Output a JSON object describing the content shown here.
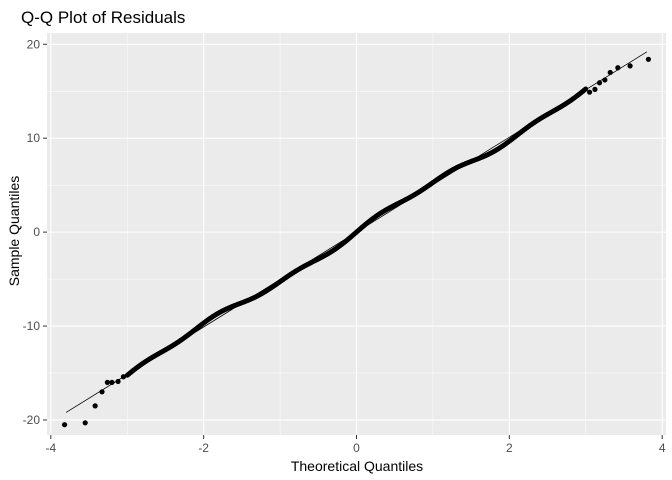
{
  "chart_data": {
    "type": "scatter",
    "title": "Q-Q Plot of Residuals",
    "xlabel": "Theoretical Quantiles",
    "ylabel": "Sample Quantiles",
    "xlim": [
      -4.05,
      4.05
    ],
    "ylim": [
      -21.6,
      21.2
    ],
    "x_ticks": [
      -4,
      -2,
      0,
      2,
      4
    ],
    "y_ticks": [
      -20,
      -10,
      0,
      10,
      20
    ],
    "x_tick_labels": [
      "-4",
      "-2",
      "0",
      "2",
      "4"
    ],
    "y_tick_labels": [
      "-20",
      "-10",
      "0",
      "10",
      "20"
    ],
    "x_minor": [
      -3,
      -1,
      1,
      3
    ],
    "y_minor": [
      -15,
      -5,
      5,
      15
    ],
    "grid": true,
    "panel_background": "#ebebeb",
    "grid_color": "#ffffff",
    "point_color": "#000000",
    "reference_line": {
      "x": [
        -3.8,
        3.8
      ],
      "y": [
        -19.2,
        19.2
      ],
      "color": "#000000"
    },
    "bulk_trend": {
      "x_from": -3.0,
      "x_to": 3.0,
      "intercept": 0.0,
      "slope": 5.05
    },
    "points": {
      "x": [
        -3.82,
        -3.55,
        -3.42,
        -3.33,
        -3.26,
        -3.2,
        -3.12,
        -3.05,
        3.05,
        3.12,
        3.18,
        3.25,
        3.32,
        3.42,
        3.58,
        3.82
      ],
      "y": [
        -20.5,
        -20.3,
        -18.5,
        -17.0,
        -16.0,
        -16.0,
        -15.9,
        -15.4,
        14.9,
        15.2,
        15.9,
        16.2,
        17.0,
        17.5,
        17.7,
        18.4
      ]
    }
  }
}
